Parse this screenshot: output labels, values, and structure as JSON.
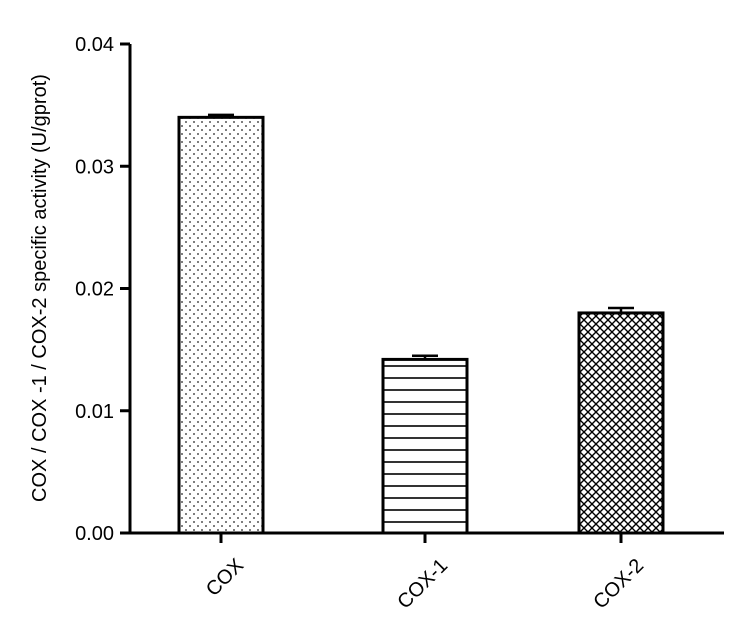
{
  "chart_data": {
    "type": "bar",
    "title": "",
    "xlabel": "",
    "ylabel": "COX / COX -1 / COX-2 specific activity (U/gprot)",
    "categories": [
      "COX",
      "COX-1",
      "COX-2"
    ],
    "values": [
      0.034,
      0.0142,
      0.018
    ],
    "errors": [
      0.0002,
      0.0003,
      0.0004
    ],
    "patterns": [
      "dots",
      "horizontal-lines",
      "crosshatch"
    ],
    "ylim": [
      0,
      0.04
    ],
    "yticks": [
      0.0,
      0.01,
      0.02,
      0.03,
      0.04
    ],
    "ytick_labels": [
      "0.00",
      "0.01",
      "0.02",
      "0.03",
      "0.04"
    ],
    "grid": false,
    "legend": "none"
  }
}
